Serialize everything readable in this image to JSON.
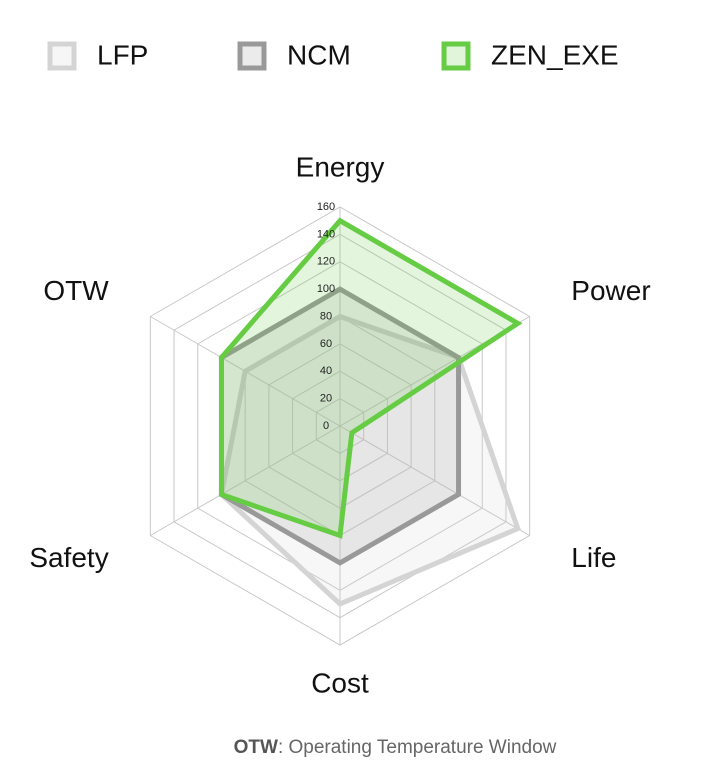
{
  "chart_data": {
    "type": "radar",
    "categories": [
      "Energy",
      "Power",
      "Life",
      "Cost",
      "Safety",
      "OTW"
    ],
    "series": [
      {
        "name": "LFP",
        "color": "#d4d4d4",
        "values": [
          80,
          100,
          150,
          130,
          100,
          80
        ]
      },
      {
        "name": "NCM",
        "color": "#999999",
        "values": [
          100,
          100,
          100,
          100,
          100,
          100
        ]
      },
      {
        "name": "ZEN_EXE",
        "color": "#66cc44",
        "values": [
          150,
          150,
          10,
          80,
          100,
          100
        ]
      }
    ],
    "rlim": [
      0,
      160
    ],
    "rticks": [
      0,
      20,
      40,
      60,
      80,
      100,
      120,
      140,
      160
    ],
    "grid": true,
    "footnote": {
      "term": "OTW",
      "text": ": Operating Temperature Window"
    }
  }
}
